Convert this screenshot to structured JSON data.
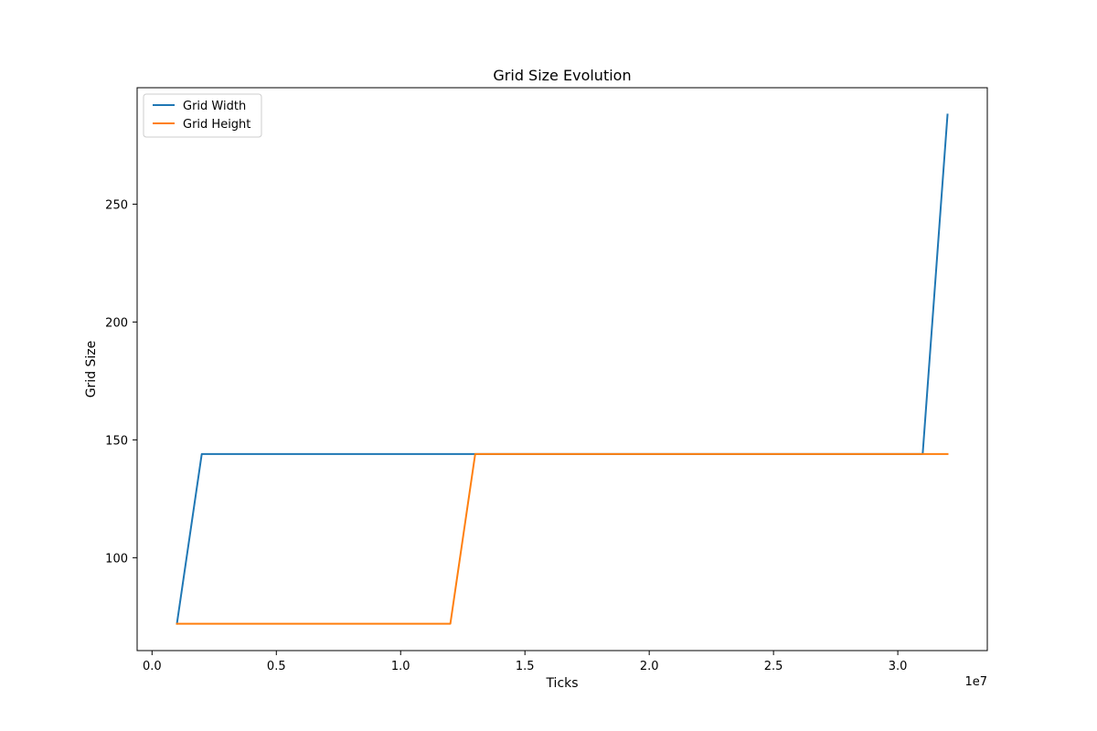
{
  "chart_data": {
    "type": "line",
    "title": "Grid Size Evolution",
    "xlabel": "Ticks",
    "ylabel": "Grid Size",
    "x_offset_label": "1e7",
    "xlim": [
      -0.06,
      3.36
    ],
    "ylim": [
      60.6,
      299.4
    ],
    "x_ticks": [
      0.0,
      0.5,
      1.0,
      1.5,
      2.0,
      2.5,
      3.0
    ],
    "x_tick_labels": [
      "0.0",
      "0.5",
      "1.0",
      "1.5",
      "2.0",
      "2.5",
      "3.0"
    ],
    "y_ticks": [
      100,
      150,
      200,
      250
    ],
    "y_tick_labels": [
      "100",
      "150",
      "200",
      "250"
    ],
    "grid": false,
    "legend_position": "upper-left",
    "series": [
      {
        "name": "Grid Width",
        "color": "#1f77b4",
        "x": [
          0.1,
          0.2,
          0.3,
          0.4,
          0.5,
          0.6,
          0.7,
          0.8,
          0.9,
          1.0,
          1.1,
          1.2,
          1.3,
          1.4,
          1.5,
          1.6,
          1.7,
          1.8,
          1.9,
          2.0,
          2.1,
          2.2,
          2.3,
          2.4,
          2.5,
          2.6,
          2.7,
          2.8,
          2.9,
          3.0,
          3.1,
          3.2
        ],
        "y": [
          72,
          144,
          144,
          144,
          144,
          144,
          144,
          144,
          144,
          144,
          144,
          144,
          144,
          144,
          144,
          144,
          144,
          144,
          144,
          144,
          144,
          144,
          144,
          144,
          144,
          144,
          144,
          144,
          144,
          144,
          144,
          288
        ]
      },
      {
        "name": "Grid Height",
        "color": "#ff7f0e",
        "x": [
          0.1,
          0.2,
          0.3,
          0.4,
          0.5,
          0.6,
          0.7,
          0.8,
          0.9,
          1.0,
          1.1,
          1.2,
          1.3,
          1.4,
          1.5,
          1.6,
          1.7,
          1.8,
          1.9,
          2.0,
          2.1,
          2.2,
          2.3,
          2.4,
          2.5,
          2.6,
          2.7,
          2.8,
          2.9,
          3.0,
          3.1,
          3.2
        ],
        "y": [
          72,
          72,
          72,
          72,
          72,
          72,
          72,
          72,
          72,
          72,
          72,
          72,
          144,
          144,
          144,
          144,
          144,
          144,
          144,
          144,
          144,
          144,
          144,
          144,
          144,
          144,
          144,
          144,
          144,
          144,
          144,
          144
        ]
      }
    ]
  }
}
